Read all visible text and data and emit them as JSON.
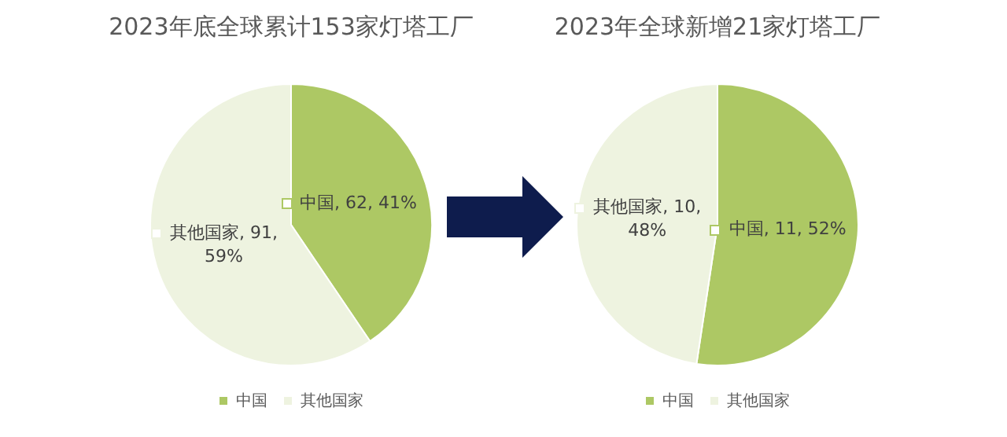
{
  "chart_data": [
    {
      "type": "pie",
      "title": "2023年底全球累计153家灯塔工厂",
      "categories": [
        "中国",
        "其他国家"
      ],
      "values": [
        62,
        91
      ],
      "colors": [
        "#adc864",
        "#eef3e0"
      ],
      "value_labels": [
        "中国, 62, 41%",
        "其他国家, 91, 59%"
      ],
      "legend": "bottom"
    },
    {
      "type": "pie",
      "title": "2023年全球新增21家灯塔工厂",
      "categories": [
        "中国",
        "其他国家"
      ],
      "values": [
        11,
        10
      ],
      "colors": [
        "#adc864",
        "#eef3e0"
      ],
      "value_labels": [
        "中国, 11, 52%",
        "其他国家, 10, 48%"
      ],
      "legend": "bottom"
    }
  ]
}
